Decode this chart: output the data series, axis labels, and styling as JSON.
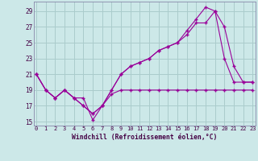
{
  "background_color": "#cce8e8",
  "grid_color": "#aacccc",
  "line_color": "#990099",
  "xlabel": "Windchill (Refroidissement éolien,°C)",
  "xlim": [
    -0.3,
    23.3
  ],
  "ylim": [
    14.5,
    30.2
  ],
  "yticks": [
    15,
    17,
    19,
    21,
    23,
    25,
    27,
    29
  ],
  "xticks": [
    0,
    1,
    2,
    3,
    4,
    5,
    6,
    7,
    8,
    9,
    10,
    11,
    12,
    13,
    14,
    15,
    16,
    17,
    18,
    19,
    20,
    21,
    22,
    23
  ],
  "s1_x": [
    0,
    1,
    2,
    3,
    4,
    5,
    6,
    7,
    8,
    9,
    10,
    11,
    12,
    13,
    14,
    15,
    16,
    17,
    18,
    19,
    20,
    21,
    22,
    23
  ],
  "s1_y": [
    21,
    19,
    18,
    19,
    18,
    18,
    15.2,
    17,
    18.5,
    19,
    19,
    19,
    19,
    19,
    19,
    19,
    19,
    19,
    19,
    19,
    19,
    19,
    19,
    19
  ],
  "s2_x": [
    0,
    1,
    2,
    3,
    4,
    5,
    6,
    7,
    8,
    9,
    10,
    11,
    12,
    13,
    14,
    15,
    16,
    17,
    18,
    19,
    20,
    21,
    22,
    23
  ],
  "s2_y": [
    21,
    19,
    18,
    19,
    18,
    17,
    16,
    17,
    19,
    21,
    22,
    22.5,
    23,
    24,
    24.5,
    25,
    26,
    27.5,
    27.5,
    29,
    27,
    22,
    20,
    20
  ],
  "s3_x": [
    0,
    1,
    2,
    3,
    4,
    5,
    6,
    7,
    8,
    9,
    10,
    11,
    12,
    13,
    14,
    15,
    16,
    17,
    18,
    19,
    20,
    21,
    22,
    23
  ],
  "s3_y": [
    21,
    19,
    18,
    19,
    18,
    17,
    16,
    17,
    19,
    21,
    22,
    22.5,
    23,
    24,
    24.5,
    25,
    26.5,
    28,
    29.5,
    29,
    23,
    20,
    20,
    20
  ]
}
